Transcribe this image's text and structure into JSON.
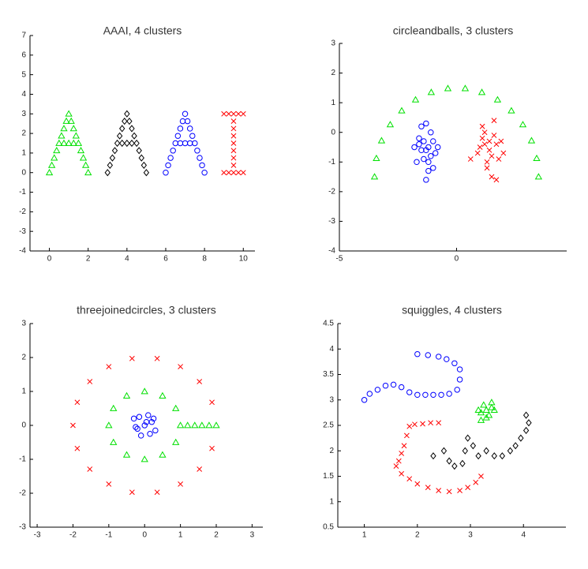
{
  "chart_data": [
    {
      "type": "scatter",
      "title": "AAAI, 4 clusters",
      "xlim": [
        -1,
        10.6
      ],
      "ylim": [
        -4,
        7
      ],
      "xticks": [
        0,
        2,
        4,
        6,
        8,
        10
      ],
      "yticks": [
        -4,
        -3,
        -2,
        -1,
        0,
        1,
        2,
        3,
        4,
        5,
        6,
        7
      ],
      "series": [
        {
          "color": "#00e000",
          "marker": "triangle",
          "x": [
            0,
            0.125,
            0.25,
            0.375,
            0.5,
            0.625,
            0.75,
            0.875,
            1,
            1.125,
            1.25,
            1.375,
            1.5,
            1.625,
            1.75,
            1.875,
            2,
            0.75,
            1,
            1.25
          ],
          "y": [
            0,
            0.375,
            0.75,
            1.125,
            1.5,
            1.875,
            2.25,
            2.625,
            3,
            2.625,
            2.25,
            1.875,
            1.5,
            1.125,
            0.75,
            0.375,
            0,
            1.5,
            1.5,
            1.5
          ]
        },
        {
          "color": "#000000",
          "marker": "diamond",
          "x": [
            3,
            3.125,
            3.25,
            3.375,
            3.5,
            3.625,
            3.75,
            3.875,
            4,
            4.125,
            4.25,
            4.375,
            4.5,
            4.625,
            4.75,
            4.875,
            5,
            3.75,
            4,
            4.25
          ],
          "y": [
            0,
            0.375,
            0.75,
            1.125,
            1.5,
            1.875,
            2.25,
            2.625,
            3,
            2.625,
            2.25,
            1.875,
            1.5,
            1.125,
            0.75,
            0.375,
            0,
            1.5,
            1.5,
            1.5
          ]
        },
        {
          "color": "#0000ff",
          "marker": "circle",
          "x": [
            6,
            6.125,
            6.25,
            6.375,
            6.5,
            6.625,
            6.75,
            6.875,
            7,
            7.125,
            7.25,
            7.375,
            7.5,
            7.625,
            7.75,
            7.875,
            8,
            6.75,
            7,
            7.25
          ],
          "y": [
            0,
            0.375,
            0.75,
            1.125,
            1.5,
            1.875,
            2.25,
            2.625,
            3,
            2.625,
            2.25,
            1.875,
            1.5,
            1.125,
            0.75,
            0.375,
            0,
            1.5,
            1.5,
            1.5
          ]
        },
        {
          "color": "#ff0000",
          "marker": "x",
          "x": [
            9.5,
            9.5,
            9.5,
            9.5,
            9.5,
            9.5,
            9.5,
            9.5,
            9.5,
            9,
            9.25,
            9.75,
            10,
            9,
            9.25,
            9.75,
            10
          ],
          "y": [
            0,
            0.375,
            0.75,
            1.125,
            1.5,
            1.875,
            2.25,
            2.625,
            3,
            3,
            3,
            3,
            3,
            0,
            0,
            0,
            0
          ]
        }
      ]
    },
    {
      "type": "scatter",
      "title": "circleandballs, 3 clusters",
      "xlim": [
        -5,
        4.7
      ],
      "ylim": [
        -4,
        3
      ],
      "xticks": [
        -5,
        0
      ],
      "yticks": [
        -4,
        -3,
        -2,
        -1,
        0,
        1,
        2,
        3
      ],
      "series": [
        {
          "color": "#00e000",
          "marker": "triangle",
          "x": [
            3.5,
            3.42,
            3.2,
            2.83,
            2.34,
            1.75,
            1.08,
            0.37,
            -0.37,
            -1.08,
            -1.75,
            -2.34,
            -2.83,
            -3.2,
            -3.42,
            -3.5
          ],
          "y": [
            -1.5,
            -0.876,
            -0.28,
            0.26,
            0.73,
            1.1,
            1.35,
            1.48,
            1.48,
            1.35,
            1.1,
            0.73,
            0.26,
            -0.28,
            -0.876,
            -1.5
          ]
        },
        {
          "color": "#0000ff",
          "marker": "circle",
          "x": [
            -1.3,
            -1.0,
            -1.6,
            -1.2,
            -0.9,
            -1.5,
            -1.4,
            -1.1,
            -1.8,
            -1.3,
            -1.0,
            -1.6,
            -1.2,
            -1.4,
            -1.7,
            -1.1,
            -1.3,
            -1.5,
            -0.8,
            -1.2
          ],
          "y": [
            -0.6,
            -0.3,
            -0.4,
            -1.0,
            -0.7,
            0.2,
            -0.9,
            0.0,
            -0.5,
            -1.6,
            -1.2,
            -0.2,
            -0.5,
            -0.3,
            -1.0,
            -0.8,
            0.3,
            -0.6,
            -0.5,
            -1.3
          ]
        },
        {
          "color": "#ff0000",
          "marker": "x",
          "x": [
            1.4,
            1.1,
            1.7,
            1.3,
            0.9,
            1.6,
            1.2,
            1.8,
            1.0,
            1.5,
            1.4,
            2.0,
            1.3,
            1.6,
            0.6,
            1.1,
            1.7,
            1.5,
            1.2,
            1.9
          ],
          "y": [
            -0.6,
            -0.2,
            -0.4,
            -1.0,
            -0.7,
            0.4,
            0.0,
            -0.9,
            -0.5,
            -1.5,
            -0.3,
            -0.7,
            -1.2,
            -0.1,
            -0.9,
            0.2,
            -1.6,
            -0.8,
            -0.4,
            -0.3
          ]
        }
      ]
    },
    {
      "type": "scatter",
      "title": "threejoinedcircles, 3 clusters",
      "xlim": [
        -3.2,
        3.3
      ],
      "ylim": [
        -3,
        3
      ],
      "xticks": [
        -3,
        -2,
        -1,
        0,
        1,
        2,
        3
      ],
      "yticks": [
        -3,
        -2,
        -1,
        0,
        1,
        2,
        3
      ],
      "series": [
        {
          "color": "#ff0000",
          "marker": "x",
          "x": [
            1.88,
            1.53,
            1.0,
            0.35,
            -0.35,
            -1.0,
            -1.53,
            -1.88,
            -2,
            -1.88,
            -1.53,
            -1.0,
            -0.35,
            0.35,
            1.0,
            1.53,
            1.88
          ],
          "y": [
            0.68,
            1.29,
            1.73,
            1.97,
            1.97,
            1.73,
            1.29,
            0.68,
            0,
            -0.68,
            -1.29,
            -1.73,
            -1.97,
            -1.97,
            -1.73,
            -1.29,
            -0.68
          ]
        },
        {
          "color": "#00e000",
          "marker": "triangle",
          "x": [
            1,
            0.87,
            0.5,
            0,
            -0.5,
            -0.87,
            -1,
            -0.87,
            -0.5,
            0,
            0.5,
            0.87,
            1.2,
            1.4,
            1.6,
            1.8,
            2
          ],
          "y": [
            0,
            0.5,
            0.87,
            1,
            0.87,
            0.5,
            0,
            -0.5,
            -0.87,
            -1,
            -0.87,
            -0.5,
            0,
            0,
            0,
            0,
            0
          ]
        },
        {
          "color": "#0000ff",
          "marker": "circle",
          "x": [
            0,
            0.2,
            -0.2,
            0.1,
            -0.1,
            0.3,
            -0.3,
            0.15,
            -0.15,
            0.05,
            0.25,
            -0.25
          ],
          "y": [
            0,
            0.1,
            -0.1,
            0.3,
            -0.3,
            -0.15,
            0.2,
            -0.25,
            0.25,
            0.1,
            0.2,
            -0.05
          ]
        }
      ]
    },
    {
      "type": "scatter",
      "title": "squiggles, 4 clusters",
      "xlim": [
        0.5,
        4.8
      ],
      "ylim": [
        0.5,
        4.5
      ],
      "xticks": [
        1,
        2,
        3,
        4
      ],
      "yticks": [
        0.5,
        1,
        1.5,
        2,
        2.5,
        3,
        3.5,
        4,
        4.5
      ],
      "series": [
        {
          "color": "#0000ff",
          "marker": "circle",
          "x": [
            1.0,
            1.1,
            1.25,
            1.4,
            1.55,
            1.7,
            1.85,
            2.0,
            2.15,
            2.3,
            2.45,
            2.6,
            2.75,
            2.8,
            2.8,
            2.7,
            2.55,
            2.4,
            2.2,
            2.0
          ],
          "y": [
            3.0,
            3.12,
            3.2,
            3.28,
            3.3,
            3.25,
            3.15,
            3.1,
            3.1,
            3.1,
            3.1,
            3.12,
            3.2,
            3.4,
            3.6,
            3.72,
            3.8,
            3.85,
            3.88,
            3.9
          ]
        },
        {
          "color": "#ff0000",
          "marker": "x",
          "x": [
            2.4,
            2.25,
            2.1,
            1.95,
            1.85,
            1.8,
            1.75,
            1.7,
            1.65,
            1.6,
            1.7,
            1.85,
            2.0,
            2.2,
            2.4,
            2.6,
            2.8,
            2.95,
            3.1,
            3.2
          ],
          "y": [
            2.55,
            2.55,
            2.53,
            2.52,
            2.48,
            2.3,
            2.1,
            1.95,
            1.8,
            1.7,
            1.55,
            1.45,
            1.35,
            1.28,
            1.22,
            1.2,
            1.22,
            1.28,
            1.38,
            1.5
          ]
        },
        {
          "color": "#00e000",
          "marker": "triangle",
          "x": [
            3.3,
            3.2,
            3.4,
            3.25,
            3.35,
            3.45,
            3.15,
            3.3,
            3.4,
            3.2
          ],
          "y": [
            2.8,
            2.75,
            2.85,
            2.9,
            2.7,
            2.8,
            2.8,
            2.65,
            2.95,
            2.6
          ]
        },
        {
          "color": "#000000",
          "marker": "diamond",
          "x": [
            2.3,
            2.5,
            2.6,
            2.7,
            2.85,
            2.9,
            2.95,
            3.05,
            3.15,
            3.3,
            3.45,
            3.6,
            3.75,
            3.85,
            3.95,
            4.05,
            4.1,
            4.05
          ],
          "y": [
            1.9,
            2.0,
            1.8,
            1.7,
            1.75,
            2.0,
            2.25,
            2.1,
            1.9,
            2.0,
            1.9,
            1.9,
            2.0,
            2.1,
            2.25,
            2.4,
            2.55,
            2.7
          ]
        }
      ]
    }
  ]
}
